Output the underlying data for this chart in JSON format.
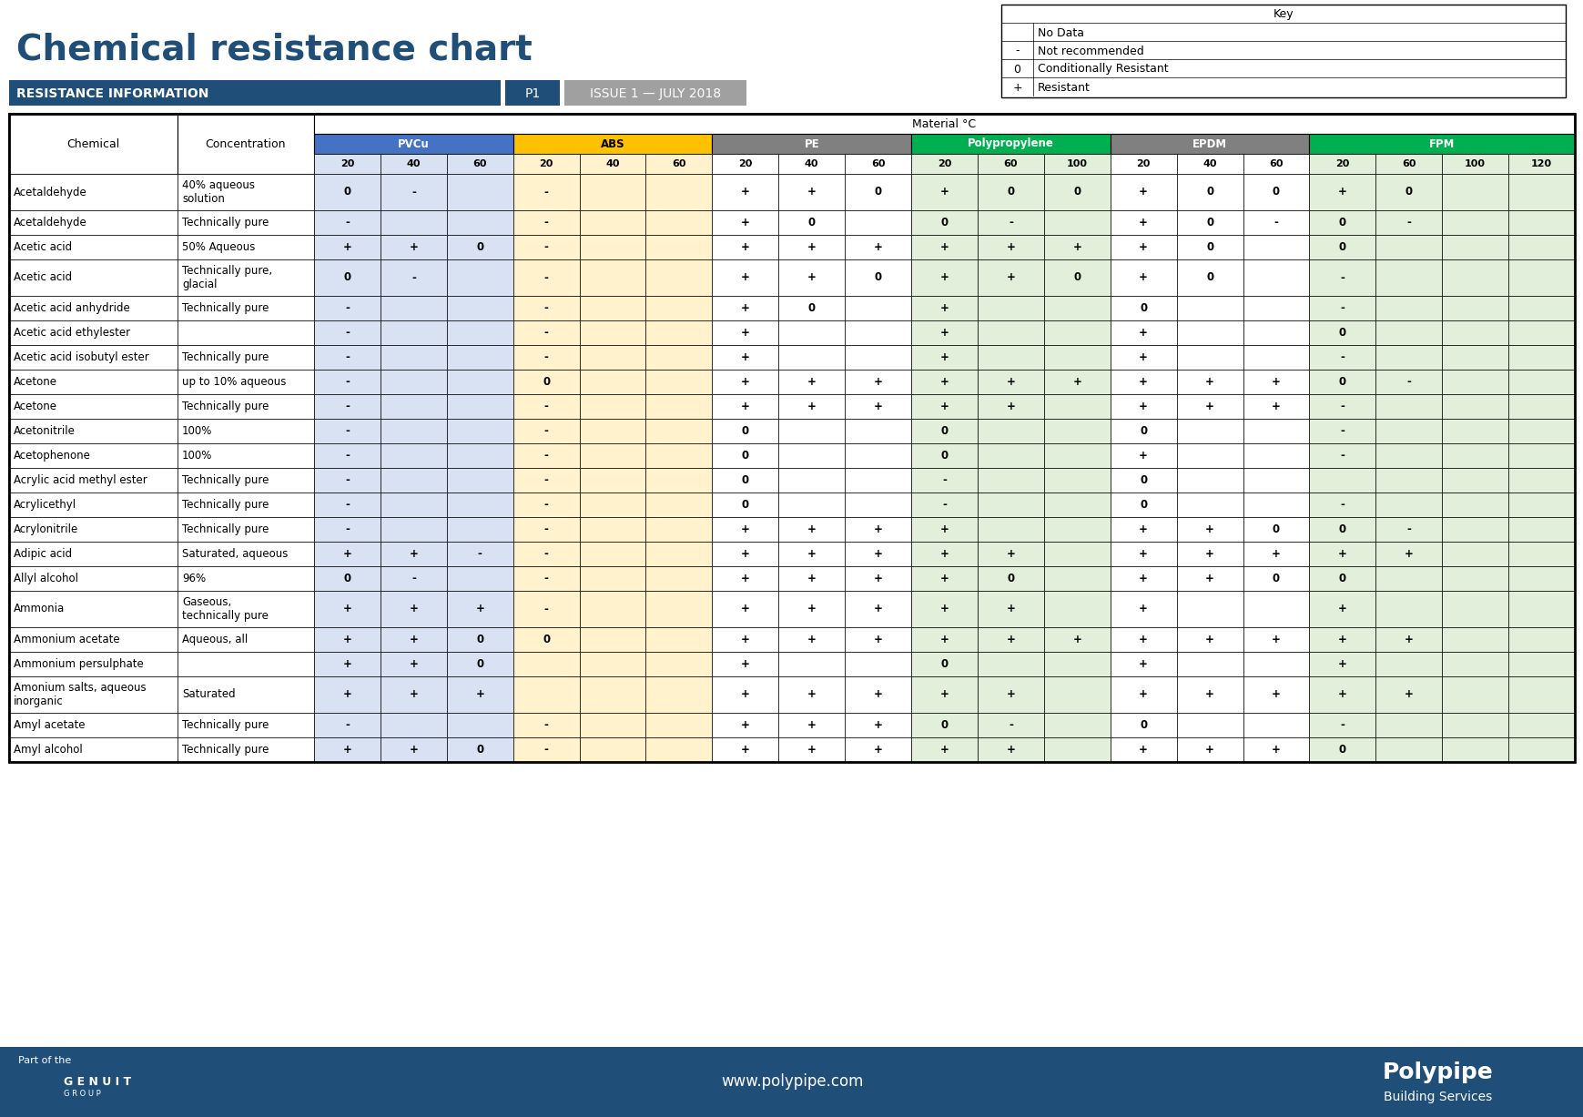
{
  "title": "Chemical resistance chart",
  "subtitle_left": "RESISTANCE INFORMATION",
  "subtitle_p": "P1",
  "subtitle_right": "ISSUE 1 — JULY 2018",
  "key_title": "Key",
  "key_items": [
    {
      "symbol": "",
      "label": "No Data",
      "color": "#ffffff"
    },
    {
      "symbol": "-",
      "label": "Not recommended",
      "color": "#ffffff"
    },
    {
      "symbol": "0",
      "label": "Conditionally Resistant",
      "color": "#ffffff"
    },
    {
      "symbol": "+",
      "label": "Resistant",
      "color": "#ffffff"
    }
  ],
  "material_header": "Material °C",
  "materials": [
    {
      "name": "PVCu",
      "color": "#4472C4",
      "temps": [
        "20",
        "40",
        "60"
      ]
    },
    {
      "name": "ABS",
      "color": "#FFC000",
      "temps": [
        "20",
        "40",
        "60"
      ]
    },
    {
      "name": "PE",
      "color": "#808080",
      "temps": [
        "20",
        "40",
        "60"
      ]
    },
    {
      "name": "Polypropylene",
      "color": "#00B050",
      "temps": [
        "20",
        "60",
        "100"
      ]
    },
    {
      "name": "EPDM",
      "color": "#808080",
      "temps": [
        "20",
        "40",
        "60"
      ]
    },
    {
      "name": "FPM",
      "color": "#00B050",
      "temps": [
        "20",
        "60",
        "100",
        "120"
      ]
    }
  ],
  "col_header_bg": {
    "PVCu": "#4472C4",
    "ABS": "#FFC000",
    "PE": "#808080",
    "Polypropylene": "#00B050",
    "EPDM": "#808080",
    "FPM": "#00B050"
  },
  "col_data_bg": {
    "PVCu": "#B8CCE4",
    "ABS": "#FDEDC3",
    "PE": "#ffffff",
    "Polypropylene": "#C6EFCE",
    "EPDM": "#ffffff",
    "FPM": "#E2EFDA"
  },
  "rows": [
    {
      "chemical": "Acetaldehyde",
      "concentration": "40% aqueous\nsolution",
      "data": [
        "0",
        "-",
        "",
        "  -",
        "",
        "",
        "+",
        "+",
        "0",
        "+",
        "0",
        "0",
        "+",
        "0",
        "0",
        "+",
        "0",
        "",
        ""
      ]
    },
    {
      "chemical": "Acetaldehyde",
      "concentration": "Technically pure",
      "data": [
        "-",
        "",
        "",
        "-",
        "",
        "",
        "+",
        "0",
        "",
        "0",
        "-",
        "",
        "+",
        "0",
        "-",
        "0",
        "-",
        "",
        ""
      ]
    },
    {
      "chemical": "Acetic acid",
      "concentration": "50% Aqueous",
      "data": [
        "+",
        "+",
        "0",
        "-",
        "",
        "",
        "+",
        "+",
        "+",
        "+",
        "+",
        "+",
        "+",
        "0",
        "",
        "0",
        "",
        "",
        ""
      ]
    },
    {
      "chemical": "Acetic acid",
      "concentration": "Technically pure,\nglacial",
      "data": [
        "0",
        "-",
        "",
        "-",
        "",
        "",
        "+",
        "+",
        "0",
        "+",
        "+",
        "0",
        "+",
        "0",
        "",
        "-",
        "",
        "",
        ""
      ]
    },
    {
      "chemical": "Acetic acid anhydride",
      "concentration": "Technically pure",
      "data": [
        "-",
        "",
        "",
        "-",
        "",
        "",
        "+",
        "0",
        "",
        "+",
        "",
        "",
        "0",
        "",
        "",
        "-",
        "",
        "",
        ""
      ]
    },
    {
      "chemical": "Acetic acid ethylester",
      "concentration": "",
      "data": [
        "-",
        "",
        "",
        "-",
        "",
        "",
        "+",
        "",
        "",
        "+",
        "",
        "",
        "+",
        "",
        "",
        "0",
        "",
        "",
        ""
      ]
    },
    {
      "chemical": "Acetic acid isobutyl ester",
      "concentration": "Technically pure",
      "data": [
        "-",
        "",
        "",
        "-",
        "",
        "",
        "+",
        "",
        "",
        "+",
        "",
        "",
        "+",
        "",
        "",
        "-",
        "",
        "",
        ""
      ]
    },
    {
      "chemical": "Acetone",
      "concentration": "up to 10% aqueous",
      "data": [
        "-",
        "",
        "",
        "0",
        "",
        "",
        "+",
        "+",
        "+",
        "+",
        "+",
        "+",
        "+",
        "+",
        "+",
        "0",
        "-",
        "",
        ""
      ]
    },
    {
      "chemical": "Acetone",
      "concentration": "Technically pure",
      "data": [
        "-",
        "",
        "",
        "-",
        "",
        "",
        "+",
        "+",
        "+",
        "+",
        "+",
        "",
        "+",
        "+",
        "+",
        "-",
        "",
        "",
        ""
      ]
    },
    {
      "chemical": "Acetonitrile",
      "concentration": "100%",
      "data": [
        "-",
        "",
        "",
        "-",
        "",
        "",
        "0",
        "",
        "",
        "0",
        "",
        "",
        "0",
        "",
        "",
        "-",
        "",
        "",
        ""
      ]
    },
    {
      "chemical": "Acetophenone",
      "concentration": "100%",
      "data": [
        "-",
        "",
        "",
        "-",
        "",
        "",
        "0",
        "",
        "",
        "0",
        "",
        "",
        "+",
        "",
        "",
        "-",
        "",
        "",
        ""
      ]
    },
    {
      "chemical": "Acrylic acid methyl ester",
      "concentration": "Technically pure",
      "data": [
        "-",
        "",
        "",
        "-",
        "",
        "",
        "0",
        "",
        "",
        "-",
        "",
        "",
        "0",
        "",
        "",
        "",
        "",
        "",
        ""
      ]
    },
    {
      "chemical": "Acrylicethyl",
      "concentration": "Technically pure",
      "data": [
        "-",
        "",
        "",
        "-",
        "",
        "",
        "0",
        "",
        "",
        "-",
        "",
        "",
        "0",
        "",
        "",
        "-",
        "",
        "",
        ""
      ]
    },
    {
      "chemical": "Acrylonitrile",
      "concentration": "Technically pure",
      "data": [
        "-",
        "",
        "",
        "-",
        "",
        "",
        "+",
        "+",
        "+",
        "+",
        "",
        "",
        "+",
        "+",
        "0",
        "0",
        "-",
        "",
        ""
      ]
    },
    {
      "chemical": "Adipic acid",
      "concentration": "Saturated, aqueous",
      "data": [
        "+",
        "+",
        "-",
        "-",
        "",
        "",
        "+",
        "+",
        "+",
        "+",
        "+",
        "",
        "+",
        "+",
        "+",
        "+",
        "+",
        "",
        ""
      ]
    },
    {
      "chemical": "Allyl alcohol",
      "concentration": "96%",
      "data": [
        "0",
        "-",
        "",
        "-",
        "",
        "",
        "+",
        "+",
        "+",
        "+",
        "0",
        "",
        "+",
        "+",
        "0",
        "0",
        "",
        "",
        ""
      ]
    },
    {
      "chemical": "Ammonia",
      "concentration": "Gaseous,\ntechnically pure",
      "data": [
        "+",
        "+",
        "+",
        "-",
        "",
        "",
        "+",
        "+",
        "+",
        "+",
        "+",
        "",
        "+",
        "",
        "",
        "+",
        "",
        "",
        ""
      ]
    },
    {
      "chemical": "Ammonium acetate",
      "concentration": "Aqueous, all",
      "data": [
        "+",
        "+",
        "0",
        "0",
        "",
        "",
        "+",
        "+",
        "+",
        "+",
        "+",
        "+",
        "+",
        "+",
        "+",
        "+",
        "+",
        "",
        ""
      ]
    },
    {
      "chemical": "Ammonium persulphate",
      "concentration": "",
      "data": [
        "+",
        "+",
        "0",
        "",
        "",
        "",
        "+",
        "",
        "",
        "0",
        "",
        "",
        "+",
        "",
        "",
        "+",
        "",
        "",
        ""
      ]
    },
    {
      "chemical": "Amonium salts, aqueous\ninorganic",
      "concentration": "Saturated",
      "data": [
        "+",
        "+",
        "+",
        "",
        "",
        "",
        "+",
        "+",
        "+",
        "+",
        "+",
        "",
        "+",
        "+",
        "+",
        "+",
        "+",
        "",
        ""
      ]
    },
    {
      "chemical": "Amyl acetate",
      "concentration": "Technically pure",
      "data": [
        "-",
        "",
        "",
        "-",
        "",
        "",
        "+",
        "+",
        "+",
        "0",
        "-",
        "",
        "0",
        "",
        "",
        "-",
        "",
        "",
        ""
      ]
    },
    {
      "chemical": "Amyl alcohol",
      "concentration": "Technically pure",
      "data": [
        "+",
        "+",
        "0",
        "-",
        "",
        "",
        "+",
        "+",
        "+",
        "+",
        "+",
        "",
        "+",
        "+",
        "+",
        "0",
        "",
        "",
        ""
      ]
    }
  ],
  "footer_left": "Part of the",
  "footer_url": "www.polypipe.com",
  "footer_logo": "Polypipe\nBuilding Services",
  "bg_color": "#ffffff",
  "header_blue": "#1F4E79",
  "title_color": "#1F4E79",
  "info_bar_color": "#1F4E79",
  "issue_bar_color": "#808080",
  "table_border": "#000000"
}
